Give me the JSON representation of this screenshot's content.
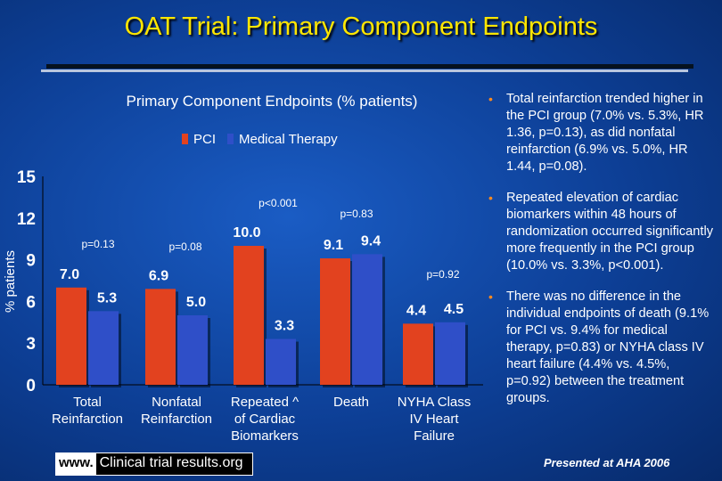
{
  "slide": {
    "title": "OAT Trial: Primary Component Endpoints",
    "footer_www": "www.",
    "footer_site": "Clinical trial results.org",
    "presented": "Presented at AHA 2006"
  },
  "bullets": [
    "Total reinfarction trended higher in the PCI group (7.0% vs. 5.3%, HR 1.36, p=0.13), as did nonfatal reinfarction (6.9% vs. 5.0%, HR 1.44, p=0.08).",
    "Repeated elevation of cardiac biomarkers within 48 hours of randomization occurred significantly more frequently in the PCI group (10.0% vs. 3.3%, p<0.001).",
    "There was no difference in the individual endpoints of death (9.1% for PCI vs. 9.4% for medical therapy, p=0.83) or NYHA class IV heart failure (4.4% vs. 4.5%, p=0.92) between the treatment groups."
  ],
  "colors": {
    "pci": "#e2421f",
    "medical": "#2f4fc8",
    "title": "#ffe600",
    "bullet_dot": "#ff8a1e"
  },
  "chart_data": {
    "type": "bar",
    "title": "Primary Component Endpoints (% patients)",
    "ylabel": "% patients",
    "xlabel": "",
    "ylim": [
      0,
      15
    ],
    "yticks": [
      0,
      3,
      6,
      9,
      12,
      15
    ],
    "grid": false,
    "legend_position": "top",
    "categories": [
      [
        "Total",
        "Reinfarction"
      ],
      [
        "Nonfatal",
        "Reinfarction"
      ],
      [
        "Repeated ^",
        "of Cardiac",
        "Biomarkers"
      ],
      [
        "Death"
      ],
      [
        "NYHA Class",
        "IV Heart",
        "Failure"
      ]
    ],
    "series": [
      {
        "name": "PCI",
        "values": [
          7.0,
          6.9,
          10.0,
          9.1,
          4.4
        ]
      },
      {
        "name": "Medical Therapy",
        "values": [
          5.3,
          5.0,
          3.3,
          9.4,
          4.5
        ]
      }
    ],
    "value_labels": [
      [
        "7.0",
        "5.3"
      ],
      [
        "6.9",
        "5.0"
      ],
      [
        "10.0",
        "3.3"
      ],
      [
        "9.1",
        "9.4"
      ],
      [
        "4.4",
        "4.5"
      ]
    ],
    "pvalues": [
      "p=0.13",
      "p=0.08",
      "p<0.001",
      "p=0.83",
      "p=0.92"
    ]
  }
}
